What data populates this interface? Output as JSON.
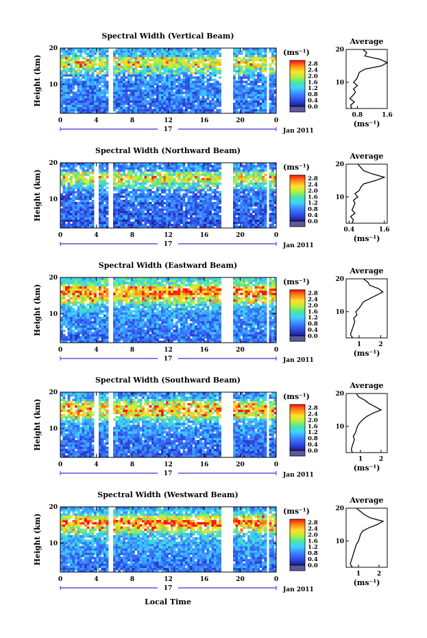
{
  "figure": {
    "x_tick_labels": [
      "0",
      "4",
      "8",
      "12",
      "16",
      "20",
      "0"
    ],
    "date_center_label": "17",
    "date_right_label": "Jan 2011",
    "bottom_xlabel": "Local Time",
    "ylabel": "Height (km)",
    "y_tick_labels": [
      "20",
      "10"
    ],
    "colorbar_unit": "(ms⁻¹)",
    "colorbar_ticks": [
      "2.8",
      "2.4",
      "2.0",
      "1.6",
      "1.2",
      "0.8",
      "0.4",
      "0.0"
    ],
    "avg_title": "Average",
    "avg_xlabel": "(ms⁻¹)",
    "colors": {
      "low": "#3b4fe0",
      "mid": "#43d0a0",
      "high": "#ff2a10",
      "axis": "#000000",
      "timeline": "#3333cc"
    }
  },
  "chart_data": [
    {
      "type": "heatmap",
      "title": "Spectral Width (Vertical Beam)",
      "xlabel": "",
      "ylabel": "Height (km)",
      "xlim": [
        0,
        24
      ],
      "ylim": [
        2,
        20
      ],
      "value_range": [
        0.0,
        3.0
      ],
      "data_gaps_hours": [
        [
          5.3,
          5.9
        ],
        [
          17.8,
          19.2
        ],
        [
          22.8,
          23.1
        ]
      ],
      "average_profile": {
        "x_tick_labels": [
          "0.8",
          "1.6"
        ],
        "xlim": [
          0.5,
          1.6
        ],
        "heights_km": [
          2,
          3,
          4,
          5,
          6,
          7,
          8,
          9,
          10,
          11,
          12,
          13,
          14,
          15,
          16,
          17,
          18,
          19,
          20
        ],
        "values": [
          0.65,
          0.62,
          0.72,
          0.6,
          0.68,
          0.75,
          0.7,
          0.8,
          0.7,
          0.78,
          0.82,
          0.85,
          1.0,
          1.45,
          1.6,
          1.4,
          1.0,
          1.05,
          0.95
        ]
      }
    },
    {
      "type": "heatmap",
      "title": "Spectral Width (Northward Beam)",
      "xlabel": "",
      "ylabel": "Height (km)",
      "xlim": [
        0,
        24
      ],
      "ylim": [
        2,
        20
      ],
      "value_range": [
        0.0,
        3.0
      ],
      "data_gaps_hours": [
        [
          3.8,
          4.2
        ],
        [
          5.3,
          5.9
        ],
        [
          17.8,
          19.2
        ],
        [
          22.8,
          23.1
        ]
      ],
      "average_profile": {
        "x_tick_labels": [
          "0.4",
          "1.6"
        ],
        "xlim": [
          0.3,
          1.7
        ],
        "heights_km": [
          2,
          3,
          4,
          5,
          6,
          7,
          8,
          9,
          10,
          11,
          12,
          13,
          14,
          15,
          16,
          17,
          18,
          19,
          20
        ],
        "values": [
          0.5,
          0.55,
          0.45,
          0.6,
          0.5,
          0.55,
          0.6,
          0.55,
          0.7,
          0.6,
          0.75,
          0.8,
          0.9,
          1.3,
          1.6,
          1.2,
          0.9,
          0.8,
          0.7
        ]
      }
    },
    {
      "type": "heatmap",
      "title": "Spectral Width (Eastward Beam)",
      "xlabel": "",
      "ylabel": "Height (km)",
      "xlim": [
        0,
        24
      ],
      "ylim": [
        2,
        20
      ],
      "value_range": [
        0.0,
        3.0
      ],
      "data_gaps_hours": [
        [
          5.3,
          5.9
        ],
        [
          17.8,
          19.2
        ],
        [
          22.8,
          23.1
        ]
      ],
      "average_profile": {
        "x_tick_labels": [
          "1",
          "2"
        ],
        "xlim": [
          0.4,
          2.3
        ],
        "heights_km": [
          2,
          3,
          4,
          5,
          6,
          7,
          8,
          9,
          10,
          11,
          12,
          13,
          14,
          15,
          16,
          17,
          18,
          19,
          20
        ],
        "values": [
          0.7,
          0.6,
          0.65,
          0.7,
          0.75,
          0.8,
          0.75,
          0.9,
          0.85,
          1.0,
          1.1,
          1.2,
          1.5,
          1.8,
          2.1,
          1.9,
          1.5,
          1.4,
          1.2
        ]
      }
    },
    {
      "type": "heatmap",
      "title": "Spectral Width (Southward Beam)",
      "xlabel": "",
      "ylabel": "Height (km)",
      "xlim": [
        0,
        24
      ],
      "ylim": [
        2,
        20
      ],
      "value_range": [
        0.0,
        3.0
      ],
      "data_gaps_hours": [
        [
          3.8,
          4.2
        ],
        [
          5.3,
          5.9
        ],
        [
          17.8,
          19.2
        ],
        [
          22.8,
          23.1
        ]
      ],
      "average_profile": {
        "x_tick_labels": [
          "1",
          "2"
        ],
        "xlim": [
          0.3,
          2.3
        ],
        "heights_km": [
          2,
          3,
          4,
          5,
          6,
          7,
          8,
          9,
          10,
          11,
          12,
          13,
          14,
          15,
          16,
          17,
          18,
          19,
          20
        ],
        "values": [
          0.6,
          0.55,
          0.6,
          0.65,
          0.7,
          0.65,
          0.75,
          0.8,
          0.85,
          0.95,
          1.1,
          1.3,
          1.6,
          2.0,
          1.7,
          1.4,
          1.2,
          0.9,
          0.8
        ]
      }
    },
    {
      "type": "heatmap",
      "title": "Spectral Width (Westward Beam)",
      "xlabel": "Local Time",
      "ylabel": "Height (km)",
      "xlim": [
        0,
        24
      ],
      "ylim": [
        2,
        20
      ],
      "value_range": [
        0.0,
        3.0
      ],
      "data_gaps_hours": [
        [
          5.3,
          5.9
        ],
        [
          17.8,
          19.2
        ],
        [
          22.8,
          23.1
        ]
      ],
      "average_profile": {
        "x_tick_labels": [
          "1",
          "2"
        ],
        "xlim": [
          0.4,
          2.4
        ],
        "heights_km": [
          2,
          3,
          4,
          5,
          6,
          7,
          8,
          9,
          10,
          11,
          12,
          13,
          14,
          15,
          16,
          17,
          18,
          19,
          20
        ],
        "values": [
          0.7,
          0.6,
          0.65,
          0.7,
          0.75,
          0.8,
          0.85,
          0.9,
          1.0,
          1.05,
          1.1,
          1.2,
          1.5,
          1.9,
          2.2,
          1.6,
          1.3,
          1.1,
          0.9
        ]
      }
    }
  ]
}
